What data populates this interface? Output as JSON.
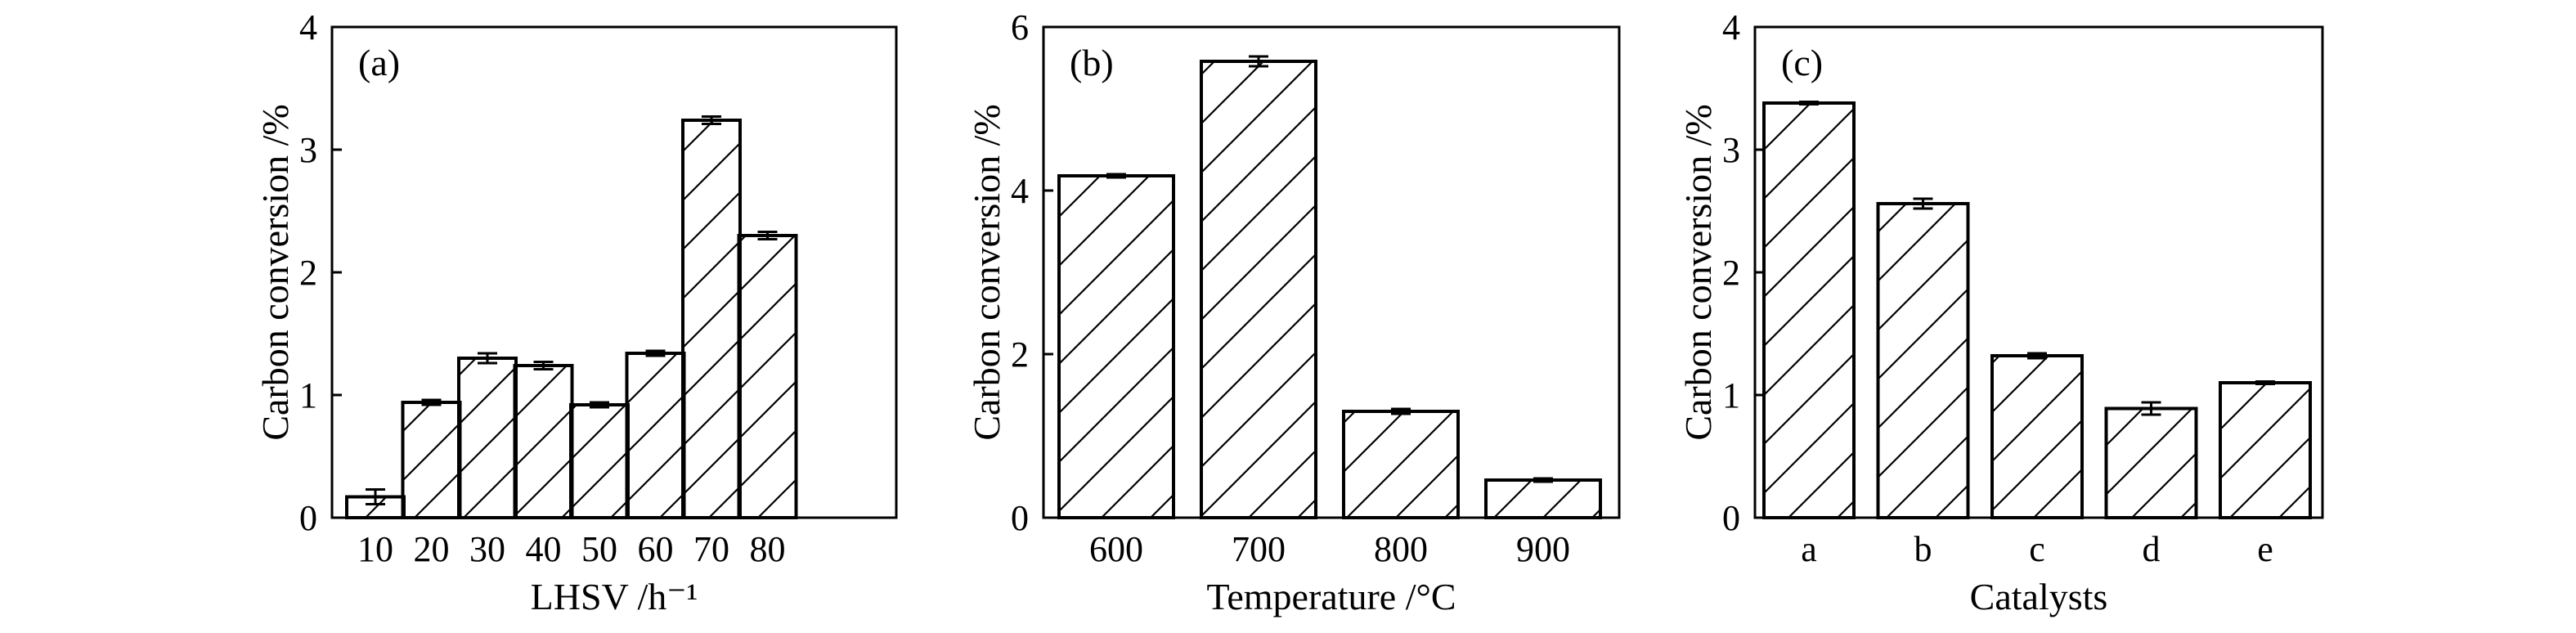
{
  "chart_data": [
    {
      "type": "bar",
      "panel_label": "(a)",
      "xlabel": "LHSV /h⁻¹",
      "ylabel": "Carbon conversion /%",
      "ylim": [
        0,
        4
      ],
      "yticks": [
        0,
        1,
        2,
        3,
        4
      ],
      "categories": [
        "10",
        "20",
        "30",
        "40",
        "50",
        "60",
        "70",
        "80"
      ],
      "values": [
        0.17,
        0.94,
        1.3,
        1.24,
        0.92,
        1.34,
        3.24,
        2.3
      ],
      "errors": [
        0.06,
        0.02,
        0.04,
        0.03,
        0.02,
        0.02,
        0.03,
        0.03
      ],
      "grid": false
    },
    {
      "type": "bar",
      "panel_label": "(b)",
      "xlabel": "Temperature /°C",
      "ylabel": "Carbon conversion /%",
      "ylim": [
        0,
        6
      ],
      "yticks": [
        0,
        2,
        4,
        6
      ],
      "categories": [
        "600",
        "700",
        "800",
        "900"
      ],
      "values": [
        4.18,
        5.58,
        1.3,
        0.46
      ],
      "errors": [
        0.02,
        0.06,
        0.03,
        0.02
      ],
      "grid": false
    },
    {
      "type": "bar",
      "panel_label": "(c)",
      "xlabel": "Catalysts",
      "ylabel": "Carbon conversion /%",
      "ylim": [
        0,
        4
      ],
      "yticks": [
        0,
        1,
        2,
        3,
        4
      ],
      "categories": [
        "a",
        "b",
        "c",
        "d",
        "e"
      ],
      "values": [
        3.38,
        2.56,
        1.32,
        0.89,
        1.1
      ],
      "errors": [
        0.01,
        0.04,
        0.02,
        0.05,
        0.01
      ],
      "grid": false
    }
  ]
}
